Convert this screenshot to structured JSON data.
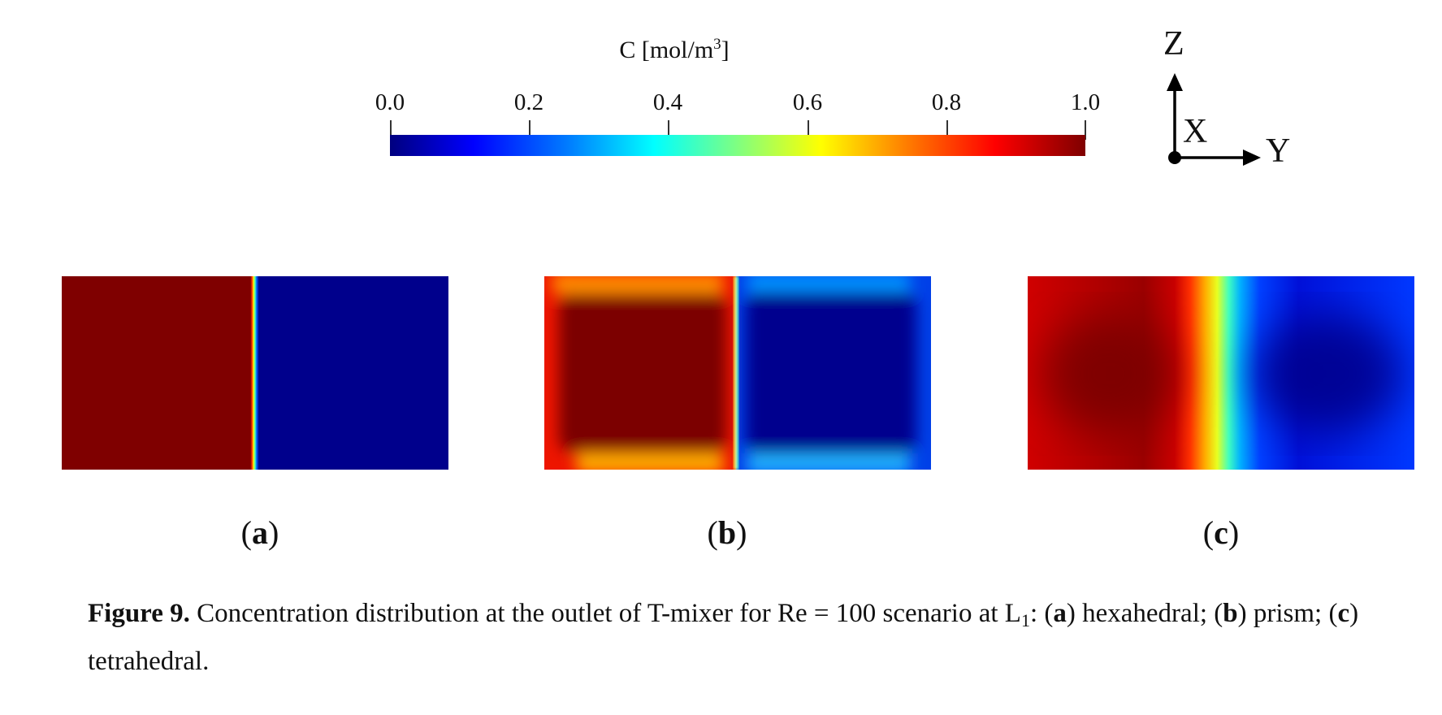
{
  "colorbar": {
    "title": "C [mol/m",
    "title_sup": "3",
    "title_close": "]",
    "ticks": [
      "0.0",
      "0.2",
      "0.4",
      "0.6",
      "0.8",
      "1.0"
    ],
    "range": [
      0.0,
      1.0
    ],
    "colormap": "jet"
  },
  "axes": {
    "z": "Z",
    "x": "X",
    "y": "Y"
  },
  "panels": [
    {
      "label_open": "(",
      "label_letter": "a",
      "label_close": ")",
      "mesh": "hexahedral"
    },
    {
      "label_open": "(",
      "label_letter": "b",
      "label_close": ")",
      "mesh": "prism"
    },
    {
      "label_open": "(",
      "label_letter": "c",
      "label_close": ")",
      "mesh": "tetrahedral"
    }
  ],
  "caption": {
    "figure_label": "Figure 9.",
    "text_1": " Concentration distribution at the outlet of T-mixer for Re = 100 scenario at L",
    "sub": "1",
    "text_2": ": (",
    "a": "a",
    "text_3": ") hexahedral; (",
    "b": "b",
    "text_4": ") prism; (",
    "c": "c",
    "text_5": ") tetrahedral."
  },
  "colors": {
    "high": "#7f0000",
    "low": "#00007f"
  }
}
